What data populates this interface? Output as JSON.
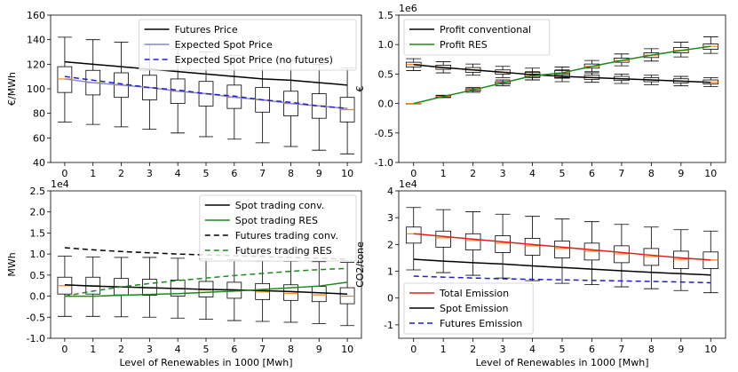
{
  "chart_data": [
    {
      "type": "box+line",
      "title": "",
      "ylabel": "€/MWh",
      "xlabel": "",
      "ylim": [
        40,
        160
      ],
      "yticks": [
        40,
        60,
        80,
        100,
        120,
        140,
        160
      ],
      "exp": "",
      "legend_position": "top-right",
      "x": [
        0,
        1,
        2,
        3,
        4,
        5,
        6,
        7,
        8,
        9,
        10
      ],
      "boxes": [
        {
          "whislo": 73,
          "q1": 97,
          "med": 108,
          "q3": 118,
          "whishi": 142
        },
        {
          "whislo": 71,
          "q1": 95,
          "med": 105,
          "q3": 115,
          "whishi": 140
        },
        {
          "whislo": 69,
          "q1": 93,
          "med": 103,
          "q3": 113,
          "whishi": 138
        },
        {
          "whislo": 67,
          "q1": 91,
          "med": 101,
          "q3": 111,
          "whishi": 136
        },
        {
          "whislo": 64,
          "q1": 88,
          "med": 98,
          "q3": 108,
          "whishi": 132
        },
        {
          "whislo": 61,
          "q1": 86,
          "med": 96,
          "q3": 106,
          "whishi": 130
        },
        {
          "whislo": 59,
          "q1": 84,
          "med": 93,
          "q3": 103,
          "whishi": 127
        },
        {
          "whislo": 56,
          "q1": 81,
          "med": 91,
          "q3": 101,
          "whishi": 125
        },
        {
          "whislo": 53,
          "q1": 78,
          "med": 88,
          "q3": 98,
          "whishi": 123
        },
        {
          "whislo": 50,
          "q1": 76,
          "med": 86,
          "q3": 96,
          "whishi": 120
        },
        {
          "whislo": 47,
          "q1": 73,
          "med": 83,
          "q3": 93,
          "whishi": 117
        }
      ],
      "series": [
        {
          "name": "Futures Price",
          "color": "#000000",
          "dash": "",
          "values": [
            122,
            120,
            118,
            116,
            114,
            112,
            110,
            108,
            107,
            105,
            103
          ]
        },
        {
          "name": "Expected Spot Price",
          "color": "#8a8ac8",
          "dash": "",
          "values": [
            108,
            105,
            103,
            101,
            98,
            96,
            93,
            91,
            88,
            86,
            84
          ]
        },
        {
          "name": "Expected Spot Price (no futures)",
          "color": "#1f1fd0",
          "dash": "6,4",
          "values": [
            110,
            107,
            104,
            101,
            99,
            96,
            94,
            91,
            89,
            86,
            84
          ]
        }
      ]
    },
    {
      "type": "box+line",
      "title": "",
      "ylabel": "€",
      "xlabel": "",
      "ylim": [
        -1.0,
        1.5
      ],
      "yticks": [
        -1.0,
        -0.5,
        0.0,
        0.5,
        1.0,
        1.5
      ],
      "tick_decimals": 1,
      "exp": "1e6",
      "legend_position": "top-left",
      "x": [
        0,
        1,
        2,
        3,
        4,
        5,
        6,
        7,
        8,
        9,
        10
      ],
      "boxes": [
        {
          "whislo": 0.56,
          "q1": 0.62,
          "med": 0.66,
          "q3": 0.7,
          "whishi": 0.76
        },
        {
          "whislo": 0.52,
          "q1": 0.58,
          "med": 0.61,
          "q3": 0.65,
          "whishi": 0.71
        },
        {
          "whislo": 0.48,
          "q1": 0.53,
          "med": 0.57,
          "q3": 0.61,
          "whishi": 0.67
        },
        {
          "whislo": 0.44,
          "q1": 0.5,
          "med": 0.53,
          "q3": 0.57,
          "whishi": 0.63
        },
        {
          "whislo": 0.4,
          "q1": 0.46,
          "med": 0.49,
          "q3": 0.53,
          "whishi": 0.6
        },
        {
          "whislo": 0.37,
          "q1": 0.43,
          "med": 0.46,
          "q3": 0.51,
          "whishi": 0.57
        },
        {
          "whislo": 0.36,
          "q1": 0.41,
          "med": 0.44,
          "q3": 0.48,
          "whishi": 0.52
        },
        {
          "whislo": 0.34,
          "q1": 0.39,
          "med": 0.42,
          "q3": 0.46,
          "whishi": 0.5
        },
        {
          "whislo": 0.32,
          "q1": 0.37,
          "med": 0.4,
          "q3": 0.44,
          "whishi": 0.48
        },
        {
          "whislo": 0.3,
          "q1": 0.35,
          "med": 0.38,
          "q3": 0.42,
          "whishi": 0.46
        },
        {
          "whislo": 0.29,
          "q1": 0.33,
          "med": 0.36,
          "q3": 0.4,
          "whishi": 0.44
        }
      ],
      "boxes2": [
        {
          "whislo": 0.0,
          "q1": 0.0,
          "med": 0.0,
          "q3": 0.0,
          "whishi": 0.0
        },
        {
          "whislo": 0.1,
          "q1": 0.11,
          "med": 0.12,
          "q3": 0.13,
          "whishi": 0.14
        },
        {
          "whislo": 0.19,
          "q1": 0.21,
          "med": 0.23,
          "q3": 0.25,
          "whishi": 0.27
        },
        {
          "whislo": 0.3,
          "q1": 0.33,
          "med": 0.35,
          "q3": 0.37,
          "whishi": 0.4
        },
        {
          "whislo": 0.4,
          "q1": 0.44,
          "med": 0.47,
          "q3": 0.5,
          "whishi": 0.54
        },
        {
          "whislo": 0.44,
          "q1": 0.49,
          "med": 0.52,
          "q3": 0.56,
          "whishi": 0.62
        },
        {
          "whislo": 0.54,
          "q1": 0.6,
          "med": 0.63,
          "q3": 0.67,
          "whishi": 0.73
        },
        {
          "whislo": 0.64,
          "q1": 0.7,
          "med": 0.73,
          "q3": 0.77,
          "whishi": 0.84
        },
        {
          "whislo": 0.72,
          "q1": 0.78,
          "med": 0.82,
          "q3": 0.86,
          "whishi": 0.93
        },
        {
          "whislo": 0.79,
          "q1": 0.86,
          "med": 0.9,
          "q3": 0.95,
          "whishi": 1.04
        },
        {
          "whislo": 0.85,
          "q1": 0.92,
          "med": 0.97,
          "q3": 1.01,
          "whishi": 1.13
        }
      ],
      "series": [
        {
          "name": "Profit conventional",
          "color": "#000000",
          "dash": "",
          "values": [
            0.66,
            0.61,
            0.57,
            0.53,
            0.49,
            0.46,
            0.44,
            0.42,
            0.4,
            0.38,
            0.36
          ]
        },
        {
          "name": "Profit RES",
          "color": "#1a8a1a",
          "dash": "",
          "values": [
            0.0,
            0.12,
            0.23,
            0.35,
            0.47,
            0.52,
            0.63,
            0.73,
            0.82,
            0.9,
            0.97
          ]
        }
      ]
    },
    {
      "type": "box+line",
      "title": "",
      "ylabel": "MWh",
      "xlabel": "Level of Renewables in 1000 [Mwh]",
      "ylim": [
        -1.0,
        2.5
      ],
      "yticks": [
        -1.0,
        -0.5,
        0.0,
        0.5,
        1.0,
        1.5,
        2.0,
        2.5
      ],
      "tick_decimals": 1,
      "exp": "1e4",
      "legend_position": "top-right",
      "x": [
        0,
        1,
        2,
        3,
        4,
        5,
        6,
        7,
        8,
        9,
        10
      ],
      "boxes": [
        {
          "whislo": -0.48,
          "q1": 0.05,
          "med": 0.25,
          "q3": 0.45,
          "whishi": 0.95
        },
        {
          "whislo": -0.48,
          "q1": 0.05,
          "med": 0.25,
          "q3": 0.45,
          "whishi": 0.93
        },
        {
          "whislo": -0.49,
          "q1": 0.03,
          "med": 0.22,
          "q3": 0.42,
          "whishi": 0.92
        },
        {
          "whislo": -0.5,
          "q1": 0.02,
          "med": 0.2,
          "q3": 0.4,
          "whishi": 0.92
        },
        {
          "whislo": -0.52,
          "q1": 0.0,
          "med": 0.18,
          "q3": 0.38,
          "whishi": 0.9
        },
        {
          "whislo": -0.55,
          "q1": -0.02,
          "med": 0.15,
          "q3": 0.35,
          "whishi": 0.88
        },
        {
          "whislo": -0.58,
          "q1": -0.05,
          "med": 0.12,
          "q3": 0.33,
          "whishi": 0.86
        },
        {
          "whislo": -0.6,
          "q1": -0.08,
          "med": 0.1,
          "q3": 0.3,
          "whishi": 0.84
        },
        {
          "whislo": -0.62,
          "q1": -0.1,
          "med": 0.07,
          "q3": 0.27,
          "whishi": 0.83
        },
        {
          "whislo": -0.65,
          "q1": -0.13,
          "med": 0.03,
          "q3": 0.23,
          "whishi": 0.82
        },
        {
          "whislo": -0.7,
          "q1": -0.18,
          "med": 0.0,
          "q3": 0.2,
          "whishi": 0.8
        }
      ],
      "series": [
        {
          "name": "Spot trading conv.",
          "color": "#000000",
          "dash": "",
          "values": [
            0.27,
            0.24,
            0.22,
            0.2,
            0.18,
            0.16,
            0.15,
            0.13,
            0.11,
            0.08,
            0.05
          ]
        },
        {
          "name": "Spot trading RES",
          "color": "#1a8a1a",
          "dash": "",
          "values": [
            0.0,
            0.0,
            0.02,
            0.04,
            0.06,
            0.09,
            0.12,
            0.16,
            0.2,
            0.24,
            0.33
          ]
        },
        {
          "name": "Futures trading conv.",
          "color": "#000000",
          "dash": "6,4",
          "values": [
            1.15,
            1.1,
            1.06,
            1.03,
            1.0,
            0.98,
            0.96,
            0.94,
            0.92,
            0.9,
            0.88
          ]
        },
        {
          "name": "Futures trading RES",
          "color": "#1a8a1a",
          "dash": "6,4",
          "values": [
            0.0,
            0.12,
            0.22,
            0.3,
            0.37,
            0.43,
            0.49,
            0.54,
            0.59,
            0.63,
            0.66
          ]
        }
      ]
    },
    {
      "type": "box+line",
      "title": "",
      "ylabel": "CO2/tone",
      "xlabel": "Level of Renewables in 1000 [Mwh]",
      "ylim": [
        -1.5,
        4
      ],
      "yticks": [
        -1,
        0,
        1,
        2,
        3,
        4
      ],
      "tick_decimals": 0,
      "exp": "1e4",
      "legend_position": "bottom-left",
      "x": [
        0,
        1,
        2,
        3,
        4,
        5,
        6,
        7,
        8,
        9,
        10
      ],
      "boxes": [
        {
          "whislo": 1.05,
          "q1": 2.05,
          "med": 2.4,
          "q3": 2.65,
          "whishi": 3.38
        },
        {
          "whislo": 0.95,
          "q1": 1.9,
          "med": 2.25,
          "q3": 2.5,
          "whishi": 3.3
        },
        {
          "whislo": 0.85,
          "q1": 1.8,
          "med": 2.15,
          "q3": 2.4,
          "whishi": 3.22
        },
        {
          "whislo": 0.75,
          "q1": 1.7,
          "med": 2.05,
          "q3": 2.33,
          "whishi": 3.13
        },
        {
          "whislo": 0.65,
          "q1": 1.6,
          "med": 1.95,
          "q3": 2.23,
          "whishi": 3.05
        },
        {
          "whislo": 0.55,
          "q1": 1.5,
          "med": 1.85,
          "q3": 2.13,
          "whishi": 2.95
        },
        {
          "whislo": 0.5,
          "q1": 1.42,
          "med": 1.75,
          "q3": 2.05,
          "whishi": 2.85
        },
        {
          "whislo": 0.42,
          "q1": 1.32,
          "med": 1.65,
          "q3": 1.95,
          "whishi": 2.75
        },
        {
          "whislo": 0.35,
          "q1": 1.22,
          "med": 1.55,
          "q3": 1.85,
          "whishi": 2.65
        },
        {
          "whislo": 0.28,
          "q1": 1.1,
          "med": 1.45,
          "q3": 1.75,
          "whishi": 2.55
        },
        {
          "whislo": 0.2,
          "q1": 1.1,
          "med": 1.42,
          "q3": 1.72,
          "whishi": 2.5
        }
      ],
      "series": [
        {
          "name": "Total Emission",
          "color": "#e02020",
          "dash": "",
          "values": [
            2.4,
            2.3,
            2.2,
            2.1,
            2.0,
            1.9,
            1.8,
            1.7,
            1.6,
            1.5,
            1.42
          ]
        },
        {
          "name": "Spot Emission",
          "color": "#000000",
          "dash": "",
          "values": [
            1.45,
            1.38,
            1.32,
            1.27,
            1.2,
            1.14,
            1.08,
            1.02,
            0.96,
            0.91,
            0.86
          ]
        },
        {
          "name": "Futures Emission",
          "color": "#1f1fd0",
          "dash": "6,4",
          "values": [
            0.82,
            0.78,
            0.75,
            0.72,
            0.7,
            0.68,
            0.66,
            0.64,
            0.62,
            0.6,
            0.57
          ]
        }
      ]
    }
  ]
}
